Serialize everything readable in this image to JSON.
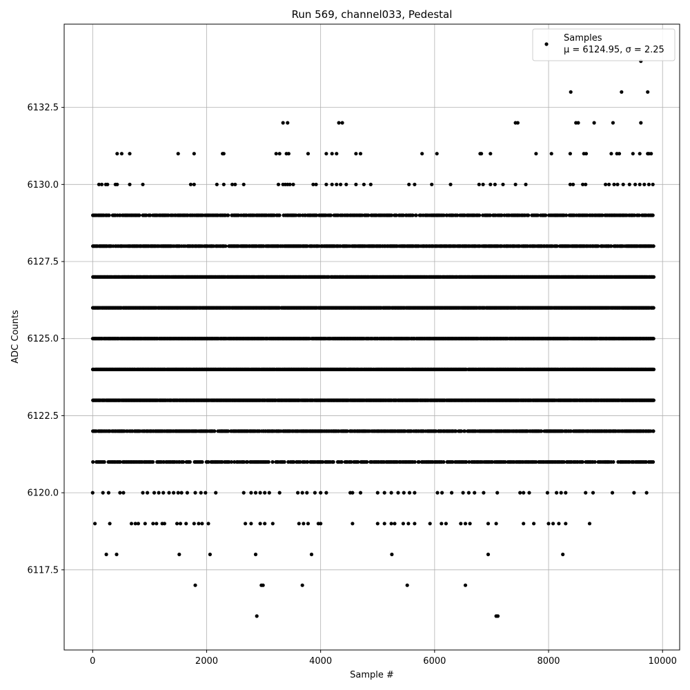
{
  "chart_data": {
    "type": "scatter",
    "title": "Run 569, channel033, Pedestal",
    "xlabel": "Sample #",
    "ylabel": "ADC Counts",
    "xlim": [
      -500,
      10300
    ],
    "ylim": [
      6114.9,
      6135.2
    ],
    "xticks": [
      0,
      2000,
      4000,
      6000,
      8000,
      10000
    ],
    "xtick_labels": [
      "0",
      "2000",
      "4000",
      "6000",
      "8000",
      "10000"
    ],
    "yticks": [
      6117.5,
      6120.0,
      6122.5,
      6125.0,
      6127.5,
      6130.0,
      6132.5
    ],
    "ytick_labels": [
      "6117.5",
      "6120.0",
      "6122.5",
      "6125.0",
      "6127.5",
      "6130.0",
      "6132.5"
    ],
    "grid": true,
    "marker_color": "#000000",
    "legend": {
      "position": "top-right",
      "entries": [
        {
          "label": "Samples",
          "stats": "μ = 6124.95, σ = 2.25"
        }
      ]
    },
    "mean": 6124.95,
    "sigma": 2.25,
    "x_range": [
      0,
      9840
    ],
    "dense_levels": [
      6121,
      6122,
      6123,
      6124,
      6125,
      6126,
      6127,
      6128,
      6129
    ],
    "sparse_levels": [
      {
        "y": 6130,
        "x": [
          110,
          160,
          230,
          260,
          400,
          430,
          650,
          880,
          1720,
          1780,
          2180,
          2300,
          2450,
          2500,
          2650,
          3260,
          3340,
          3380,
          3420,
          3460,
          3520,
          3870,
          3920,
          4100,
          4200,
          4280,
          4350,
          4450,
          4620,
          4760,
          4880,
          5550,
          5650,
          5950,
          6280,
          6780,
          6850,
          6980,
          7060,
          7200,
          7420,
          7600,
          8380,
          8430,
          8600,
          8650,
          9000,
          9060,
          9150,
          9210,
          9310,
          9420,
          9520,
          9600,
          9680,
          9760,
          9830
        ]
      },
      {
        "y": 6131,
        "x": [
          430,
          510,
          650,
          1500,
          1780,
          2280,
          2300,
          3220,
          3280,
          3400,
          3440,
          3780,
          4100,
          4200,
          4280,
          4620,
          4700,
          5780,
          6040,
          6800,
          6820,
          6980,
          7780,
          8050,
          8380,
          8620,
          8660,
          9100,
          9200,
          9240,
          9480,
          9600,
          9740,
          9760,
          9800
        ]
      },
      {
        "y": 6132,
        "x": [
          3340,
          3420,
          4320,
          4380,
          7420,
          7460,
          8480,
          8520,
          8800,
          9130,
          9620
        ]
      },
      {
        "y": 6133,
        "x": [
          8390,
          9280,
          9740
        ]
      },
      {
        "y": 6134,
        "x": [
          9620
        ]
      },
      {
        "y": 6120,
        "x": [
          0,
          180,
          280,
          480,
          540,
          880,
          960,
          1080,
          1160,
          1240,
          1340,
          1420,
          1500,
          1560,
          1660,
          1800,
          1900,
          1980,
          2160,
          2650,
          2780,
          2860,
          2940,
          3020,
          3100,
          3280,
          3600,
          3680,
          3760,
          3900,
          4000,
          4100,
          4520,
          4560,
          4700,
          5000,
          5120,
          5240,
          5360,
          5460,
          5560,
          5650,
          6050,
          6130,
          6300,
          6500,
          6600,
          6700,
          6860,
          7100,
          7500,
          7560,
          7660,
          7980,
          8140,
          8220,
          8300,
          8650,
          8780,
          9120,
          9500,
          9720
        ]
      },
      {
        "y": 6119,
        "x": [
          40,
          300,
          680,
          750,
          800,
          920,
          1060,
          1120,
          1220,
          1260,
          1480,
          1540,
          1640,
          1780,
          1860,
          1920,
          2030,
          2680,
          2780,
          2940,
          3020,
          3160,
          3620,
          3700,
          3780,
          3960,
          4000,
          4560,
          5000,
          5120,
          5240,
          5300,
          5450,
          5540,
          5650,
          5920,
          6120,
          6200,
          6460,
          6540,
          6620,
          6940,
          7080,
          7560,
          7740,
          8000,
          8080,
          8180,
          8300,
          8720
        ]
      },
      {
        "y": 6118,
        "x": [
          240,
          420,
          1520,
          2060,
          2860,
          3840,
          5250,
          6940,
          8250
        ]
      },
      {
        "y": 6117,
        "x": [
          1800,
          2960,
          2990,
          3680,
          5520,
          6540
        ]
      },
      {
        "y": 6116,
        "x": [
          2880,
          7080,
          7110
        ]
      }
    ]
  }
}
